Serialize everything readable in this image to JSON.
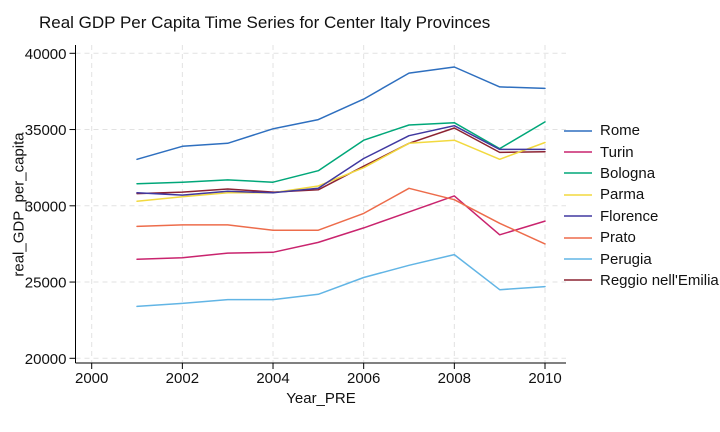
{
  "title": "Real GDP Per Capita Time Series for Center Italy Provinces",
  "chart_data": {
    "type": "line",
    "title": "Real GDP Per Capita Time Series for Center Italy Provinces",
    "xlabel": "Year_PRE",
    "ylabel": "real_GDP_per_capita",
    "x": [
      2001,
      2002,
      2003,
      2004,
      2005,
      2006,
      2007,
      2008,
      2009,
      2010
    ],
    "xticks": [
      2000,
      2002,
      2004,
      2006,
      2008,
      2010
    ],
    "yticks": [
      20000,
      25000,
      30000,
      35000,
      40000
    ],
    "xlim": [
      2000,
      2010.5
    ],
    "ylim": [
      20000,
      40000
    ],
    "grid": "dashed-both-axes",
    "legend_position": "right",
    "series": [
      {
        "name": "Rome",
        "color": "#2E6FBF",
        "values": [
          33050,
          33900,
          34100,
          35050,
          35650,
          37000,
          38700,
          39100,
          37800,
          37700
        ]
      },
      {
        "name": "Turin",
        "color": "#C9246E",
        "values": [
          26500,
          26600,
          26900,
          26950,
          27600,
          28550,
          29600,
          30650,
          28100,
          29000
        ]
      },
      {
        "name": "Bologna",
        "color": "#00A779",
        "values": [
          31450,
          31550,
          31700,
          31550,
          32300,
          34300,
          35300,
          35450,
          33750,
          35500
        ]
      },
      {
        "name": "Parma",
        "color": "#F2D93F",
        "values": [
          30300,
          30600,
          30850,
          30850,
          31300,
          32500,
          34100,
          34300,
          33050,
          34150
        ]
      },
      {
        "name": "Florence",
        "color": "#4038A0",
        "values": [
          30850,
          30700,
          30950,
          30850,
          31150,
          33100,
          34600,
          35250,
          33700,
          33700
        ]
      },
      {
        "name": "Prato",
        "color": "#ED6C4B",
        "values": [
          28650,
          28750,
          28750,
          28400,
          28400,
          29500,
          31150,
          30400,
          28850,
          27500
        ]
      },
      {
        "name": "Perugia",
        "color": "#62B5E5",
        "values": [
          23400,
          23600,
          23850,
          23850,
          24200,
          25300,
          26100,
          26800,
          24500,
          24700
        ]
      },
      {
        "name": "Reggio nell'Emilia",
        "color": "#8C2332",
        "values": [
          30800,
          30900,
          31100,
          30900,
          31050,
          32600,
          34100,
          35100,
          33500,
          33550
        ]
      }
    ]
  }
}
